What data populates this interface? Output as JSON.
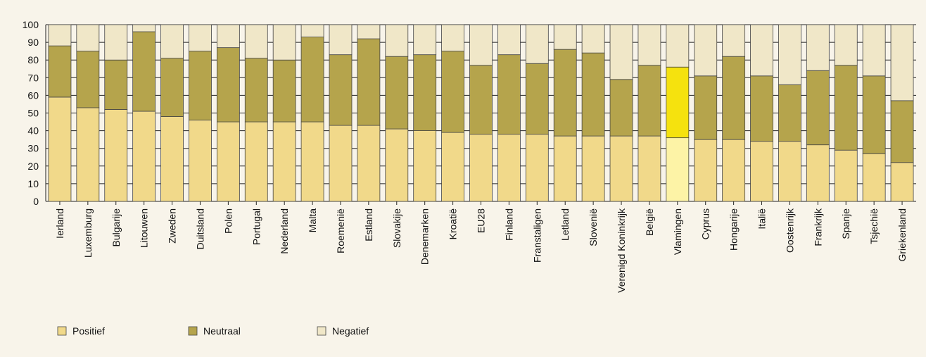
{
  "chart_data": {
    "type": "bar",
    "stacked": true,
    "categories": [
      "Ierland",
      "Luxemburg",
      "Bulgarije",
      "Litouwen",
      "Zweden",
      "Duitsland",
      "Polen",
      "Portugal",
      "Nederland",
      "Malta",
      "Roemenië",
      "Estland",
      "Slovakije",
      "Denemarken",
      "Kroatië",
      "EU28",
      "Finland",
      "Franstaligen",
      "Letland",
      "Slovenië",
      "Verenigd Koninkrijk",
      "België",
      "Vlamingen",
      "Cyprus",
      "Hongarije",
      "Italië",
      "Oostenrijk",
      "Frankrijk",
      "Spanje",
      "Tsjechië",
      "Griekenland"
    ],
    "series": [
      {
        "name": "Positief",
        "color": "#f1d98a",
        "values": [
          59,
          53,
          52,
          51,
          48,
          46,
          45,
          45,
          45,
          45,
          43,
          43,
          41,
          40,
          39,
          38,
          38,
          38,
          37,
          37,
          37,
          37,
          36,
          35,
          35,
          34,
          34,
          32,
          29,
          27,
          22
        ]
      },
      {
        "name": "Neutraal",
        "color": "#b5a44c",
        "values": [
          29,
          32,
          28,
          45,
          33,
          39,
          42,
          36,
          35,
          48,
          40,
          49,
          41,
          43,
          46,
          39,
          45,
          40,
          49,
          47,
          32,
          40,
          40,
          36,
          47,
          37,
          32,
          42,
          48,
          44,
          35
        ]
      },
      {
        "name": "Negatief",
        "color": "#f0e7c8",
        "values": [
          12,
          15,
          20,
          4,
          19,
          15,
          13,
          19,
          20,
          7,
          17,
          8,
          18,
          17,
          15,
          23,
          17,
          22,
          14,
          16,
          31,
          23,
          24,
          29,
          18,
          29,
          34,
          26,
          23,
          29,
          43
        ]
      }
    ],
    "highlight": {
      "category": "Vlamingen",
      "colors": {
        "Positief": "#fdf3a6",
        "Neutraal": "#f5e20e"
      }
    },
    "ylim": [
      0,
      100
    ],
    "yticks": [
      "0",
      "10",
      "20",
      "30",
      "40",
      "50",
      "60",
      "70",
      "80",
      "90",
      "100"
    ],
    "grid": "horizontal",
    "legend_position": "bottom-left"
  }
}
